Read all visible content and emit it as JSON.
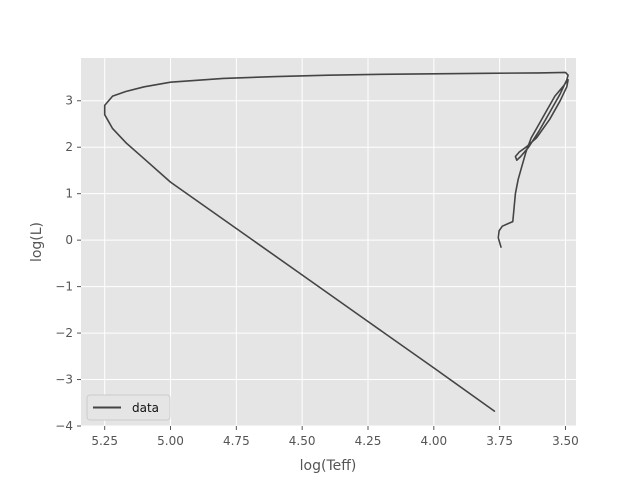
{
  "chart_data": {
    "type": "line",
    "title": "",
    "xlabel": "log(Teff)",
    "ylabel": "log(L)",
    "xlim": [
      5.34,
      3.46
    ],
    "ylim": [
      -4.0,
      3.92
    ],
    "x_inverted": true,
    "xticks": [
      5.25,
      5.0,
      4.75,
      4.5,
      4.25,
      4.0,
      3.75,
      3.5
    ],
    "xtick_labels": [
      "5.25",
      "5.00",
      "4.75",
      "4.50",
      "4.25",
      "4.00",
      "3.75",
      "3.50"
    ],
    "yticks": [
      3,
      2,
      1,
      0,
      -1,
      -2,
      -3,
      -4
    ],
    "ytick_labels": [
      "3",
      "2",
      "1",
      "0",
      "−1",
      "−2",
      "−3",
      "−4"
    ],
    "grid": true,
    "legend": {
      "position": "lower-left",
      "entries": [
        "data"
      ]
    },
    "series": [
      {
        "name": "data",
        "color": "#444444",
        "x": [
          3.745,
          3.755,
          3.752,
          3.74,
          3.72,
          3.7,
          3.695,
          3.69,
          3.68,
          3.665,
          3.65,
          3.63,
          3.6,
          3.57,
          3.54,
          3.51,
          3.49,
          3.495,
          3.52,
          3.56,
          3.61,
          3.65,
          3.675,
          3.69,
          3.685,
          3.67,
          3.64,
          3.6,
          3.56,
          3.52,
          3.495,
          3.49,
          3.5,
          3.6,
          3.8,
          4.0,
          4.2,
          4.4,
          4.6,
          4.8,
          5.0,
          5.1,
          5.17,
          5.22,
          5.25,
          5.25,
          5.22,
          5.17,
          5.1,
          5.0,
          4.75,
          4.5,
          4.25,
          4.0,
          3.77
        ],
        "y": [
          -0.15,
          0.05,
          0.2,
          0.3,
          0.35,
          0.4,
          0.7,
          1.0,
          1.3,
          1.6,
          1.9,
          2.2,
          2.5,
          2.8,
          3.1,
          3.3,
          3.45,
          3.3,
          3.0,
          2.6,
          2.2,
          2.0,
          1.9,
          1.8,
          1.72,
          1.8,
          2.0,
          2.35,
          2.75,
          3.15,
          3.45,
          3.55,
          3.61,
          3.6,
          3.59,
          3.58,
          3.57,
          3.55,
          3.52,
          3.48,
          3.4,
          3.3,
          3.2,
          3.1,
          2.9,
          2.7,
          2.4,
          2.1,
          1.75,
          1.25,
          0.25,
          -0.75,
          -1.75,
          -2.75,
          -3.68
        ]
      }
    ]
  }
}
